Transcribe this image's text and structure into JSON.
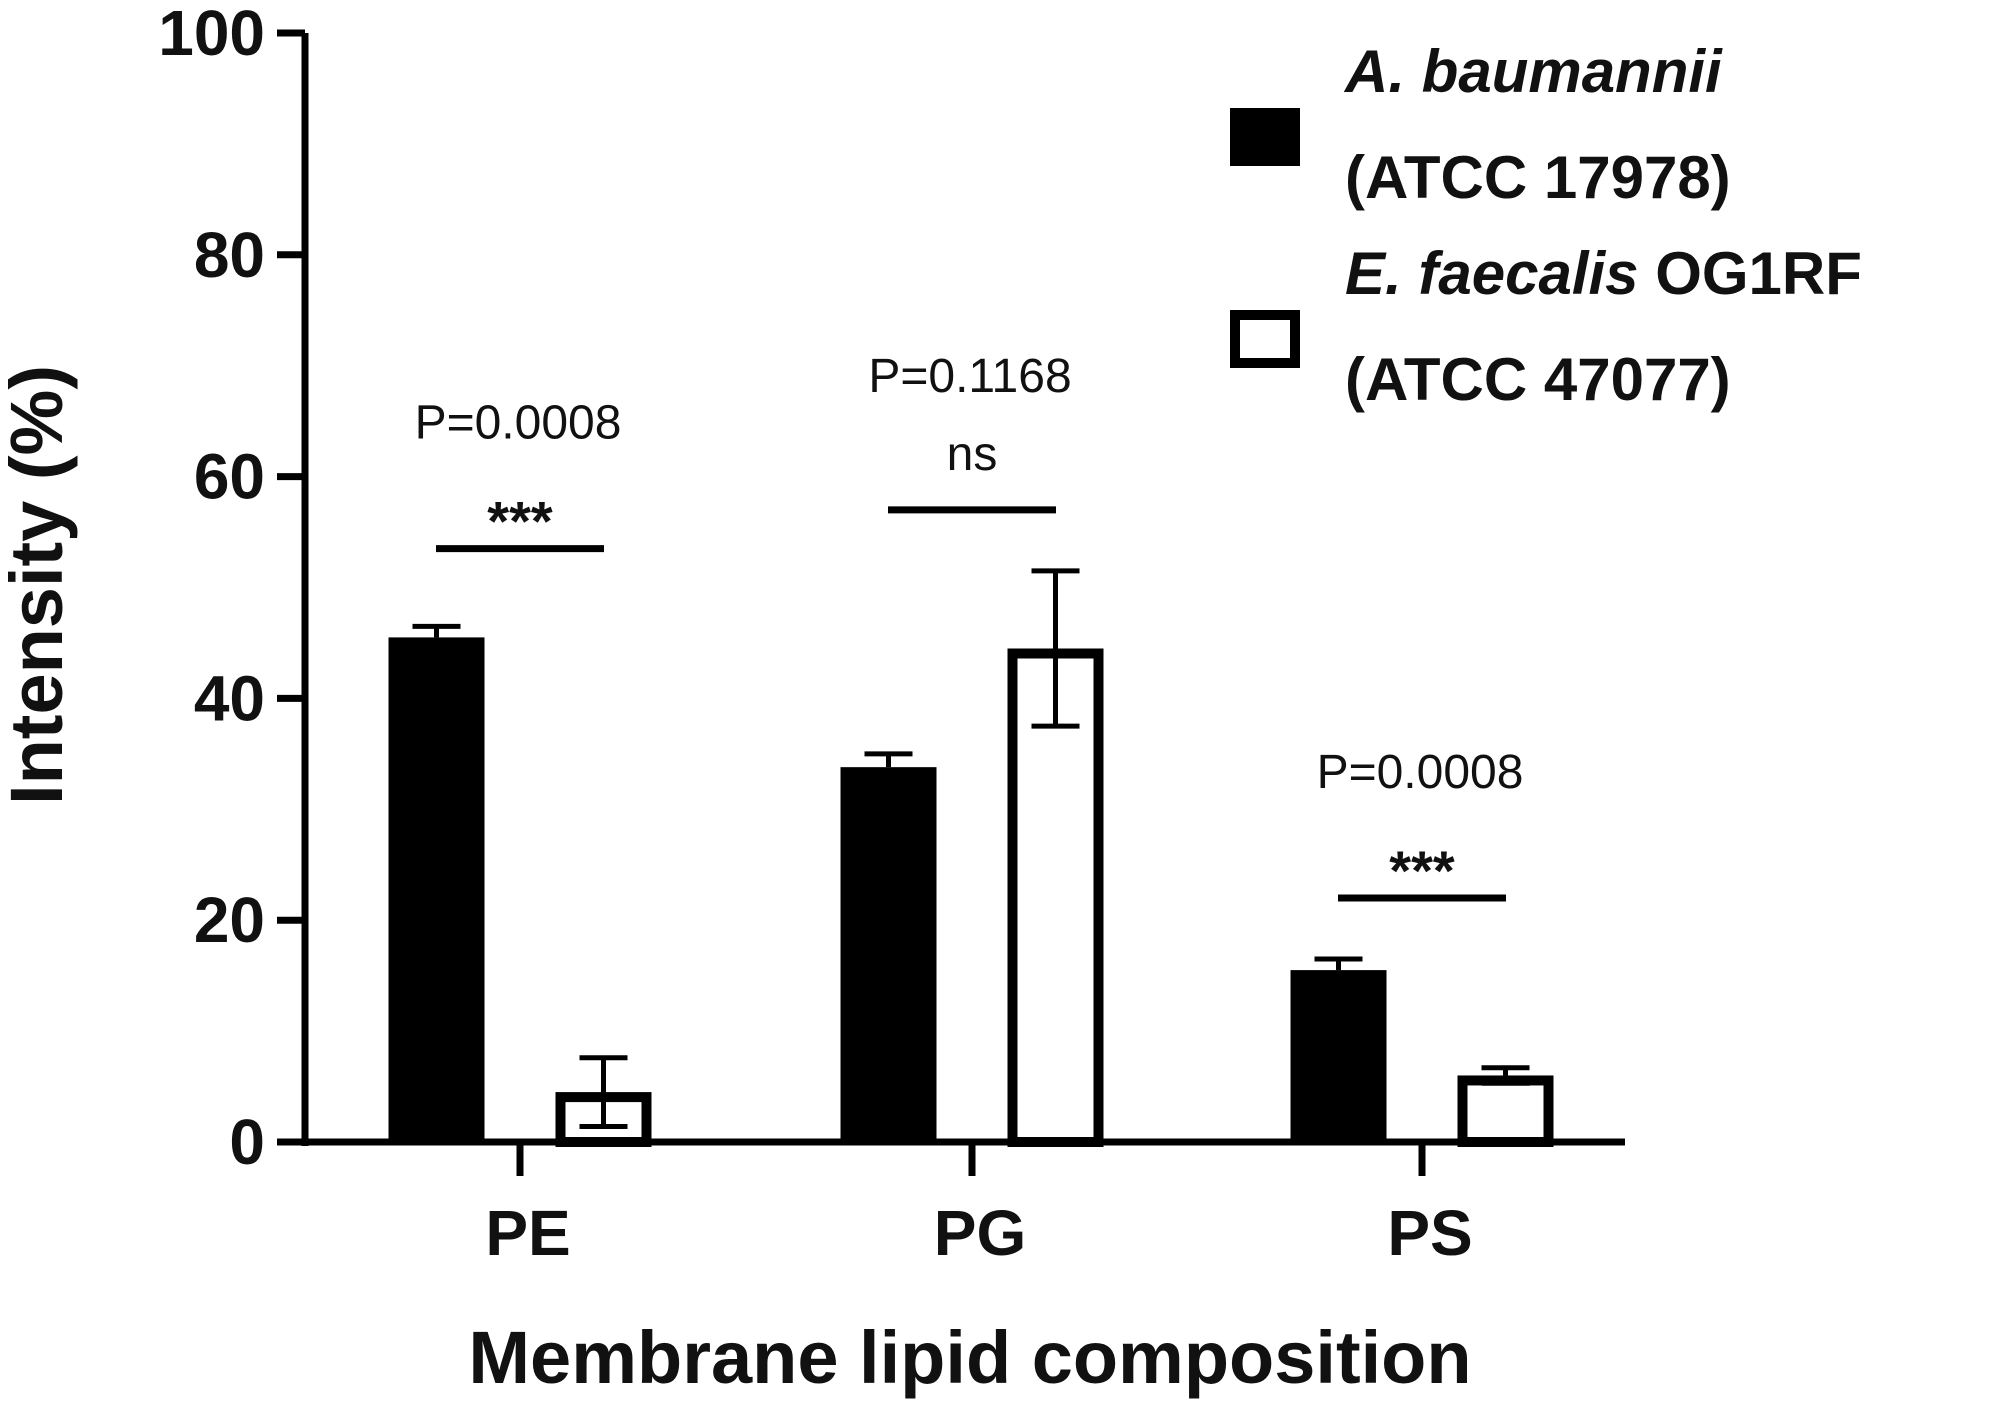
{
  "chart_data": {
    "type": "bar",
    "categories": [
      "PE",
      "PG",
      "PS"
    ],
    "series": [
      {
        "name_line1_italic": "A. baumannii",
        "name_line1_rest": "",
        "name_line2": "(ATCC 17978)",
        "values": [
          45.5,
          33.8,
          15.5
        ],
        "errors": [
          1.0,
          1.2,
          1.0
        ],
        "fill": "#000000",
        "stroke": "#000000"
      },
      {
        "name_line1_italic": "E. faecalis",
        "name_line1_rest": " OG1RF",
        "name_line2": "(ATCC 47077)",
        "values": [
          4.5,
          44.5,
          6.0
        ],
        "errors": [
          3.1,
          7.0,
          0.7
        ],
        "fill": "#ffffff",
        "stroke": "#000000"
      }
    ],
    "ylabel": "Intensity (%)",
    "xlabel": "Membrane lipid composition",
    "ylim": [
      0,
      100
    ],
    "yticks": [
      0,
      20,
      40,
      60,
      80,
      100
    ],
    "annotations": [
      {
        "category": "PE",
        "p_text": "P=0.0008",
        "sig_text": "***",
        "sig_style": "stars",
        "bar_level": 53.5
      },
      {
        "category": "PG",
        "p_text": "P=0.1168",
        "sig_text": "ns",
        "sig_style": "ns",
        "bar_level": 57
      },
      {
        "category": "PS",
        "p_text": "P=0.0008",
        "sig_text": "***",
        "sig_style": "stars",
        "bar_level": 22
      }
    ],
    "legend_position": "top-right",
    "grid": false
  }
}
